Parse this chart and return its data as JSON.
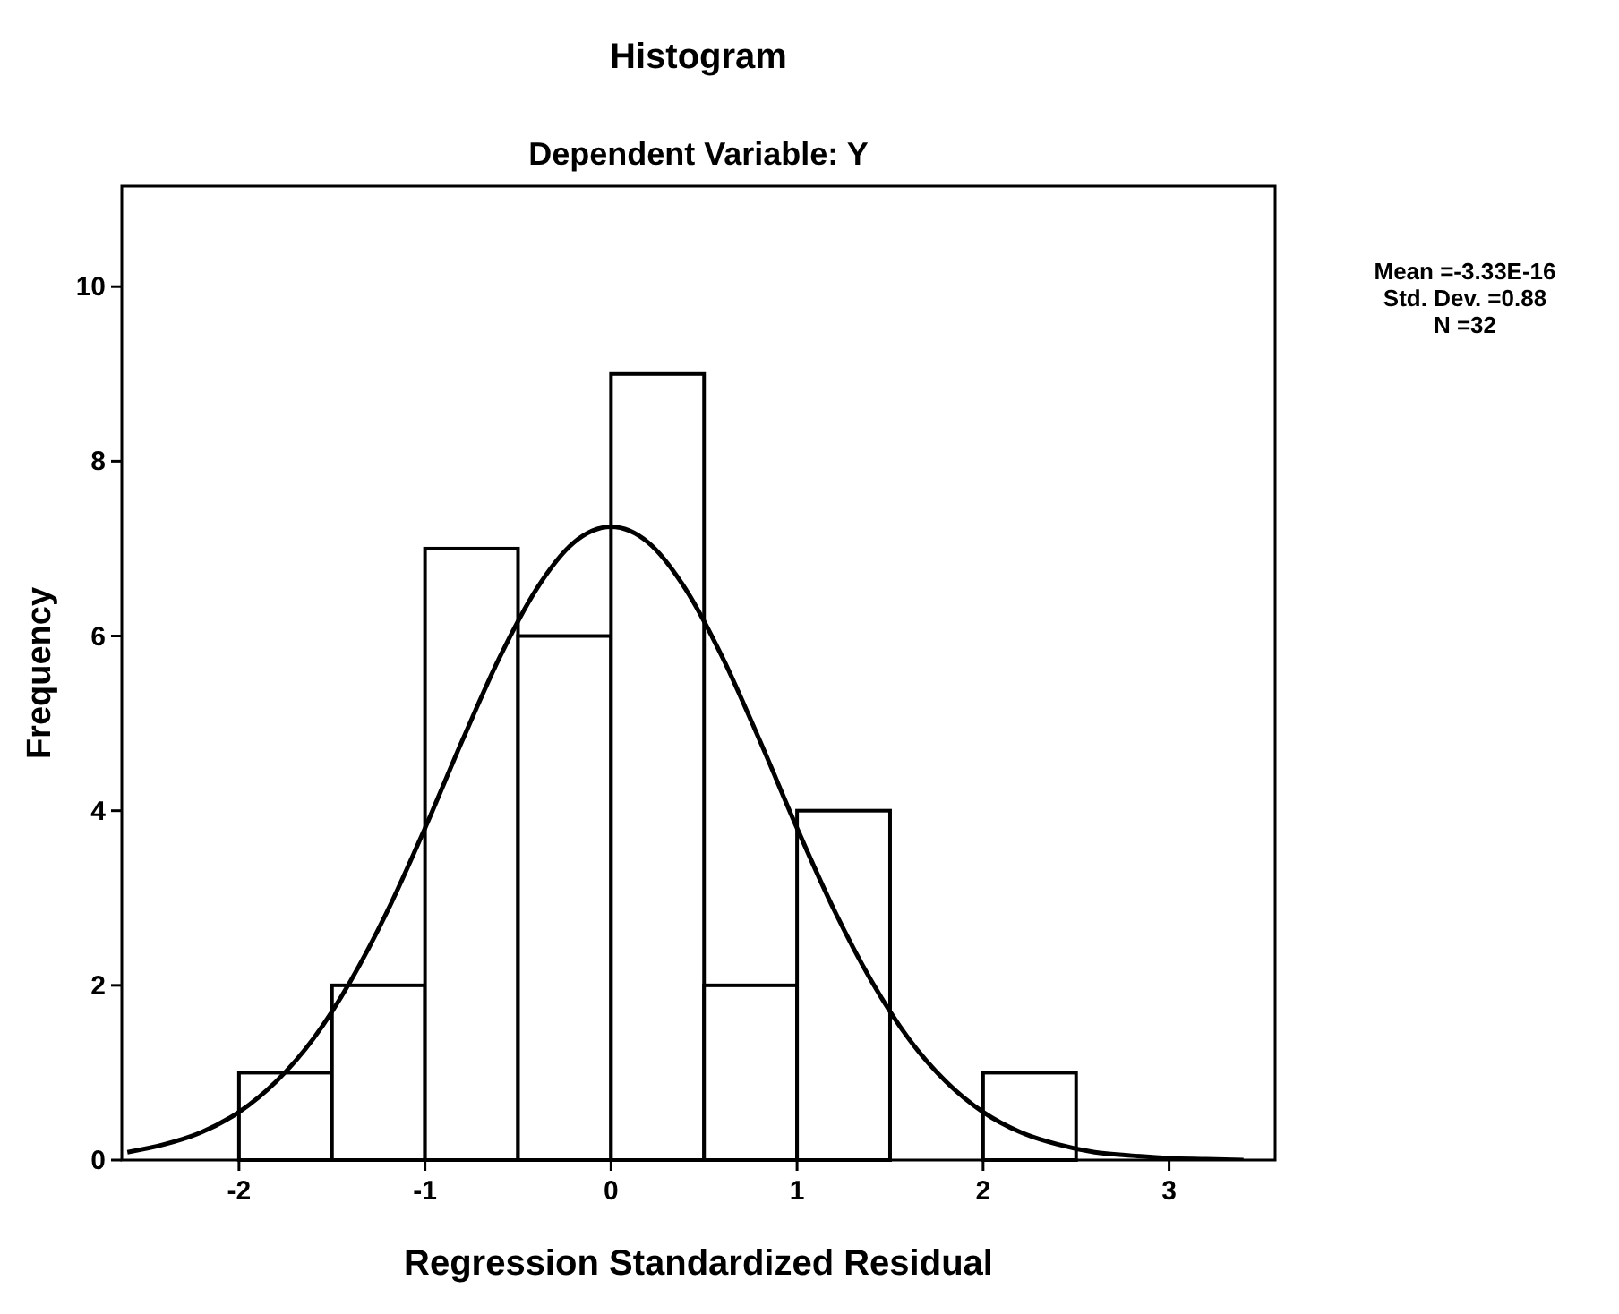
{
  "chart_data": {
    "type": "histogram",
    "title": "Histogram",
    "subtitle": "Dependent Variable: Y",
    "xlabel": "Regression Standardized Residual",
    "ylabel": "Frequency",
    "bins": [
      -2,
      -1.5,
      -1,
      -0.5,
      0,
      0.5,
      1,
      1.5,
      2,
      2.5
    ],
    "values": [
      1,
      2,
      7,
      6,
      9,
      2,
      4,
      0,
      1
    ],
    "color": "#ffffff",
    "series": [
      {
        "type": "line",
        "color": "#000000",
        "x": [
          -2.6,
          -2.4,
          -2.2,
          -2.0,
          -1.8,
          -1.6,
          -1.4,
          -1.2,
          -1.0,
          -0.8,
          -0.6,
          -0.4,
          -0.2,
          0,
          0.2,
          0.4,
          0.6,
          0.8,
          1.0,
          1.2,
          1.4,
          1.6,
          1.8,
          2.0,
          2.2,
          2.4,
          2.6,
          2.8,
          3.0,
          3.2,
          3.4
        ],
        "values": [
          0.09,
          0.18,
          0.32,
          0.55,
          0.9,
          1.39,
          2.05,
          2.86,
          3.8,
          4.8,
          5.75,
          6.54,
          7.07,
          7.25,
          7.07,
          6.54,
          5.75,
          4.8,
          3.8,
          2.86,
          2.05,
          1.39,
          0.9,
          0.55,
          0.32,
          0.18,
          0.09,
          0.05,
          0.02,
          0.01,
          0
        ]
      }
    ],
    "xlim": [
      -2.63,
      3.57
    ],
    "xticks": [
      -2,
      -1,
      0,
      1,
      2,
      3
    ],
    "ylim": [
      0,
      11.15
    ],
    "yticks": [
      0,
      2,
      4,
      6,
      8,
      10
    ],
    "grid": false,
    "annotations": [
      "Mean =-3.33E-16",
      "Std. Dev. =0.88",
      "N =32"
    ]
  }
}
